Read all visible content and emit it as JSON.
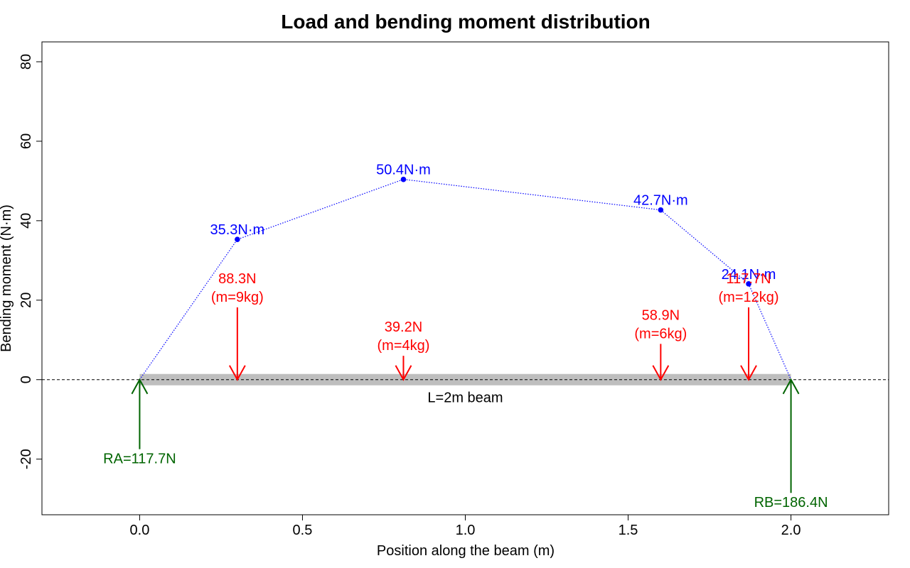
{
  "chart_data": {
    "type": "line",
    "title": "Load and bending moment distribution",
    "xlabel": "Position along the beam (m)",
    "ylabel": "Bending moment (N·m)",
    "xlim": [
      -0.3,
      2.3
    ],
    "ylim": [
      -34,
      85
    ],
    "x_ticks": [
      0.0,
      0.5,
      1.0,
      1.5,
      2.0
    ],
    "x_tick_labels": [
      "0.0",
      "0.5",
      "1.0",
      "1.5",
      "2.0"
    ],
    "y_ticks": [
      -20,
      0,
      20,
      40,
      60,
      80
    ],
    "y_tick_labels": [
      "-20",
      "0",
      "20",
      "40",
      "60",
      "80"
    ],
    "grid": false,
    "beam": {
      "start": 0.0,
      "end": 2.0,
      "label": "L=2m beam",
      "color": "#bebebe"
    },
    "moment_series": {
      "color": "#0000ff",
      "x": [
        0.0,
        0.3,
        0.81,
        1.6,
        1.87,
        2.0
      ],
      "y": [
        0.0,
        35.3,
        50.4,
        42.7,
        24.1,
        0.0
      ],
      "point_labels": [
        "",
        "35.3N·m",
        "50.4N·m",
        "42.7N·m",
        "24.1N·m",
        ""
      ]
    },
    "loads": {
      "color": "#ff0000",
      "items": [
        {
          "x": 0.3,
          "force_label": "88.3N",
          "mass_label": "(m=9kg)",
          "top": 18.2
        },
        {
          "x": 0.81,
          "force_label": "39.2N",
          "mass_label": "(m=4kg)",
          "top": 6.0
        },
        {
          "x": 1.6,
          "force_label": "58.9N",
          "mass_label": "(m=6kg)",
          "top": 9.0
        },
        {
          "x": 1.87,
          "force_label": "117.7N",
          "mass_label": "(m=12kg)",
          "top": 18.2
        }
      ]
    },
    "reactions": {
      "color": "#006400",
      "items": [
        {
          "x": 0.0,
          "label": "RA=117.7N",
          "bottom": -17.5
        },
        {
          "x": 2.0,
          "label": "RB=186.4N",
          "bottom": -28.5
        }
      ]
    }
  }
}
